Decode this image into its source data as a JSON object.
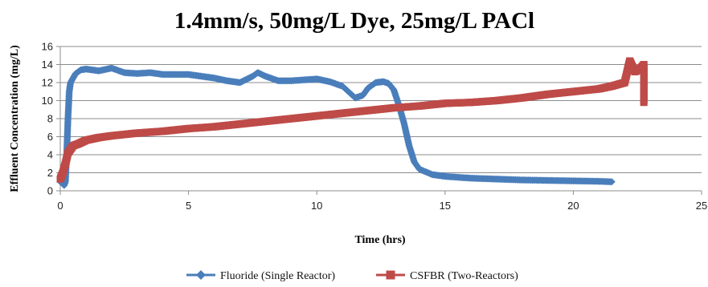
{
  "chart_data": {
    "type": "line",
    "title": "1.4mm/s, 50mg/L Dye, 25mg/L PACl",
    "xlabel": "Time (hrs)",
    "ylabel": "Effluent Concentration (mg/L)",
    "xlim": [
      0,
      25
    ],
    "ylim": [
      0,
      16
    ],
    "x_ticks": [
      0,
      5,
      10,
      15,
      20,
      25
    ],
    "y_ticks": [
      0,
      2,
      4,
      6,
      8,
      10,
      12,
      14,
      16
    ],
    "grid": "horizontal",
    "legend_position": "bottom",
    "series": [
      {
        "name": "Fluoride (Single Reactor)",
        "color": "#4a7ebb",
        "marker": "diamond",
        "x": [
          0.0,
          0.1,
          0.15,
          0.2,
          0.25,
          0.3,
          0.35,
          0.4,
          0.5,
          0.6,
          0.8,
          1.0,
          1.5,
          2.0,
          2.5,
          3.0,
          3.5,
          4.0,
          4.5,
          5.0,
          5.5,
          6.0,
          6.5,
          7.0,
          7.5,
          7.7,
          8.0,
          8.5,
          9.0,
          9.5,
          10.0,
          10.5,
          11.0,
          11.5,
          11.8,
          12.0,
          12.3,
          12.6,
          12.8,
          13.0,
          13.2,
          13.4,
          13.6,
          13.8,
          14.0,
          14.5,
          15.0,
          16.0,
          17.0,
          18.0,
          19.0,
          20.0,
          21.0,
          21.5
        ],
        "y": [
          1.0,
          0.8,
          0.6,
          1.0,
          4.0,
          8.0,
          11.0,
          12.0,
          12.5,
          13.0,
          13.4,
          13.5,
          13.3,
          13.6,
          13.1,
          13.0,
          13.1,
          12.9,
          12.9,
          12.9,
          12.7,
          12.5,
          12.2,
          12.0,
          12.7,
          13.1,
          12.7,
          12.2,
          12.2,
          12.3,
          12.4,
          12.1,
          11.6,
          10.3,
          10.6,
          11.4,
          12.0,
          12.1,
          11.9,
          11.2,
          9.5,
          7.5,
          5.0,
          3.2,
          2.4,
          1.8,
          1.6,
          1.4,
          1.3,
          1.2,
          1.15,
          1.1,
          1.05,
          1.0
        ]
      },
      {
        "name": "CSFBR (Two-Reactors)",
        "color": "#be4b48",
        "marker": "square",
        "x": [
          0.0,
          0.1,
          0.2,
          0.3,
          0.5,
          0.7,
          1.0,
          1.5,
          2.0,
          3.0,
          4.0,
          5.0,
          6.0,
          7.0,
          8.0,
          9.0,
          10.0,
          11.0,
          12.0,
          13.0,
          14.0,
          15.0,
          16.0,
          17.0,
          18.0,
          19.0,
          20.0,
          21.0,
          21.5,
          22.0,
          22.2,
          22.4,
          22.6,
          22.75,
          22.75,
          22.75
        ],
        "y": [
          1.3,
          2.0,
          3.0,
          4.2,
          5.0,
          5.2,
          5.6,
          5.9,
          6.1,
          6.4,
          6.6,
          6.9,
          7.1,
          7.4,
          7.7,
          8.0,
          8.3,
          8.6,
          8.9,
          9.2,
          9.4,
          9.7,
          9.8,
          10.0,
          10.3,
          10.7,
          11.0,
          11.3,
          11.6,
          12.0,
          14.4,
          13.2,
          13.5,
          14.0,
          12.0,
          9.8
        ]
      }
    ]
  }
}
